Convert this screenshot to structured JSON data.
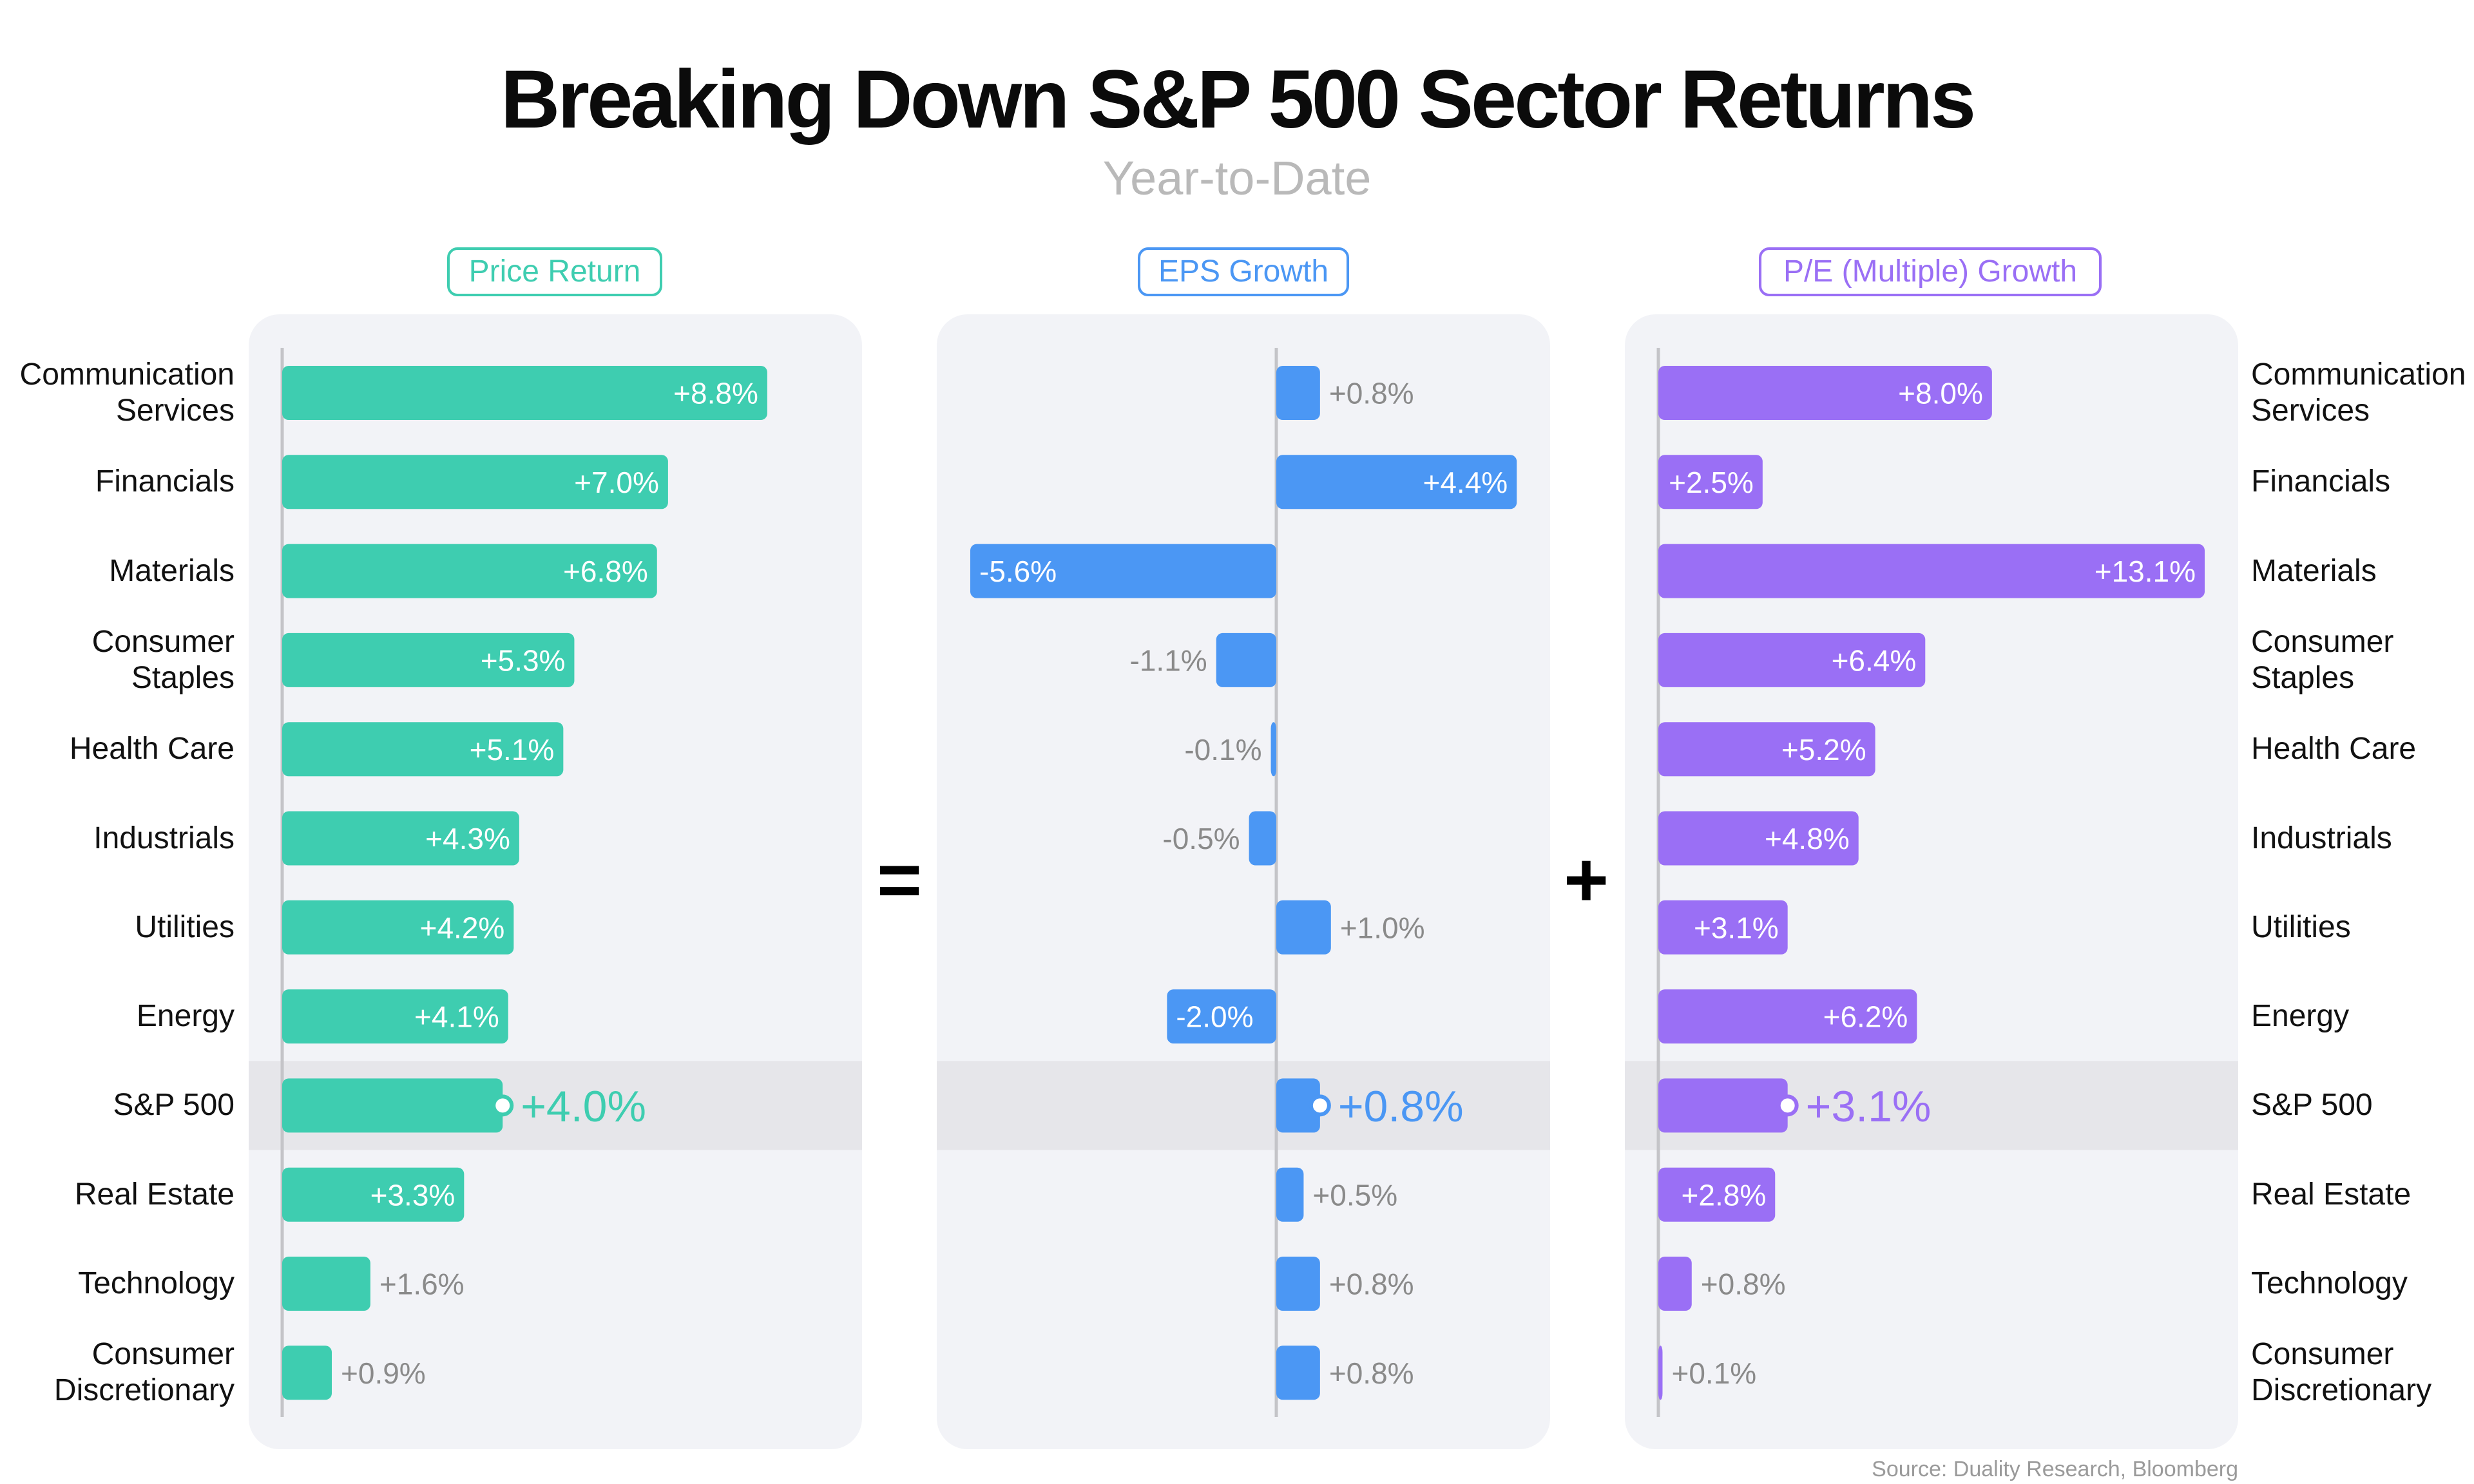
{
  "title": "Breaking Down S&P 500 Sector Returns",
  "subtitle": "Year-to-Date",
  "source": "Source: Duality Research, Bloomberg",
  "operators": {
    "equals": "=",
    "plus": "+"
  },
  "chart_data": {
    "type": "bar",
    "orientation": "horizontal",
    "categories": [
      "Communication Services",
      "Financials",
      "Materials",
      "Consumer Staples",
      "Health Care",
      "Industrials",
      "Utilities",
      "Energy",
      "S&P 500",
      "Real Estate",
      "Technology",
      "Consumer Discretionary"
    ],
    "highlight_category": "S&P 500",
    "series": [
      {
        "name": "Price Return",
        "color": "#3ecdb0",
        "values": [
          8.8,
          7.0,
          6.8,
          5.3,
          5.1,
          4.3,
          4.2,
          4.1,
          4.0,
          3.3,
          1.6,
          0.9
        ],
        "labels": [
          "+8.8%",
          "+7.0%",
          "+6.8%",
          "+5.3%",
          "+5.1%",
          "+4.3%",
          "+4.2%",
          "+4.1%",
          "+4.0%",
          "+3.3%",
          "+1.6%",
          "+0.9%"
        ],
        "xlim": [
          0,
          9.0
        ]
      },
      {
        "name": "EPS Growth",
        "color": "#4b97f4",
        "values": [
          0.8,
          4.4,
          -5.6,
          -1.1,
          -0.1,
          -0.5,
          1.0,
          -2.0,
          0.8,
          0.5,
          0.8,
          0.8
        ],
        "labels": [
          "+0.8%",
          "+4.4%",
          "-5.6%",
          "-1.1%",
          "-0.1%",
          "-0.5%",
          "+1.0%",
          "-2.0%",
          "+0.8%",
          "+0.5%",
          "+0.8%",
          "+0.8%"
        ],
        "xlim": [
          -5.6,
          5.6
        ]
      },
      {
        "name": "P/E (Multiple) Growth",
        "color": "#9a6ff5",
        "values": [
          8.0,
          2.5,
          13.1,
          6.4,
          5.2,
          4.8,
          3.1,
          6.2,
          3.1,
          2.8,
          0.8,
          0.1
        ],
        "labels": [
          "+8.0%",
          "+2.5%",
          "+13.1%",
          "+6.4%",
          "+5.2%",
          "+4.8%",
          "+3.1%",
          "+6.2%",
          "+3.1%",
          "+2.8%",
          "+0.8%",
          "+0.1%"
        ],
        "xlim": [
          0,
          13.1
        ]
      }
    ],
    "left_labels": [
      [
        "Communication",
        "Services"
      ],
      [
        "Financials"
      ],
      [
        "Materials"
      ],
      [
        "Consumer",
        "Staples"
      ],
      [
        "Health Care"
      ],
      [
        "Industrials"
      ],
      [
        "Utilities"
      ],
      [
        "Energy"
      ],
      [
        "S&P 500"
      ],
      [
        "Real Estate"
      ],
      [
        "Technology"
      ],
      [
        "Consumer",
        "Discretionary"
      ]
    ],
    "right_labels": [
      [
        "Communication",
        "Services"
      ],
      [
        "Financials"
      ],
      [
        "Materials"
      ],
      [
        "Consumer",
        "Staples"
      ],
      [
        "Health Care"
      ],
      [
        "Industrials"
      ],
      [
        "Utilities"
      ],
      [
        "Energy"
      ],
      [
        "S&P 500"
      ],
      [
        "Real Estate"
      ],
      [
        "Technology"
      ],
      [
        "Consumer",
        "Discretionary"
      ]
    ],
    "xlabel": "",
    "ylabel": "",
    "grid": false
  }
}
